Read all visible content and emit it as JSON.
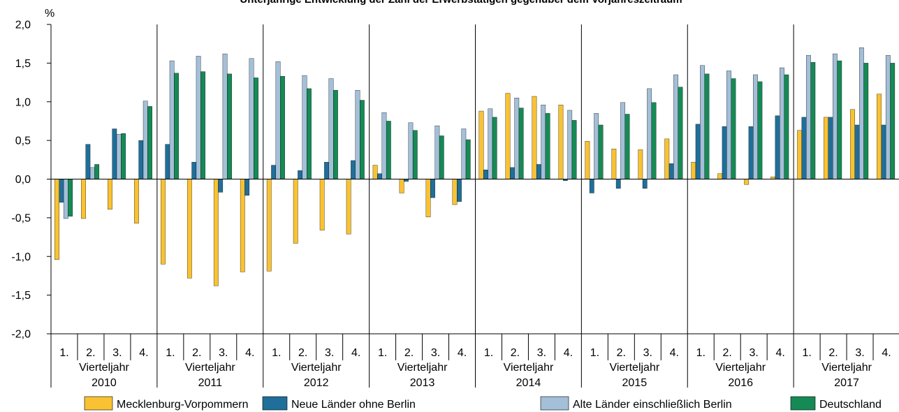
{
  "chart_data": {
    "type": "bar",
    "title": "Unterjährige Entwicklung der Zahl der Erwerbstätigen gegenüber dem Vorjahreszeitraum",
    "ylabel": "%",
    "xlabel": "",
    "ylim": [
      -2.0,
      2.0
    ],
    "y_ticks": [
      "2,0",
      "1,5",
      "1,0",
      "0,5",
      "0,0",
      "-0,5",
      "-1,0",
      "-1,5",
      "-2,0"
    ],
    "grid": false,
    "legend_position": "bottom",
    "quarter_labels": [
      "1.",
      "2.",
      "3.",
      "4."
    ],
    "group_caption": "Vierteljahr",
    "years": [
      "2010",
      "2011",
      "2012",
      "2013",
      "2014",
      "2015",
      "2016",
      "2017"
    ],
    "series": [
      {
        "name": "Mecklenburg-Vorpommern",
        "color": "#f9c232",
        "values": [
          -1.04,
          -0.51,
          -0.39,
          -0.57,
          -1.1,
          -1.28,
          -1.38,
          -1.2,
          -1.19,
          -0.83,
          -0.66,
          -0.71,
          0.18,
          -0.18,
          -0.49,
          -0.33,
          0.88,
          1.11,
          1.07,
          0.96,
          0.49,
          0.39,
          0.38,
          0.52,
          0.22,
          0.07,
          -0.07,
          0.03,
          0.63,
          0.8,
          0.9,
          1.1
        ]
      },
      {
        "name": "Neue Länder ohne Berlin",
        "color": "#1f6f9a",
        "values": [
          -0.3,
          0.45,
          0.65,
          0.5,
          0.45,
          0.22,
          -0.17,
          -0.21,
          0.18,
          0.11,
          0.22,
          0.24,
          0.07,
          -0.03,
          -0.24,
          -0.29,
          0.12,
          0.15,
          0.19,
          -0.02,
          -0.18,
          -0.12,
          -0.12,
          0.2,
          0.71,
          0.68,
          0.68,
          0.82,
          0.8,
          0.8,
          0.7,
          0.7
        ]
      },
      {
        "name": "Alte Länder einschließlich Berlin",
        "color": "#a4bfd8",
        "values": [
          -0.51,
          0.15,
          0.58,
          1.01,
          1.53,
          1.59,
          1.62,
          1.56,
          1.52,
          1.34,
          1.3,
          1.15,
          0.86,
          0.73,
          0.69,
          0.65,
          0.91,
          1.05,
          0.96,
          0.89,
          0.85,
          0.99,
          1.17,
          1.35,
          1.47,
          1.4,
          1.35,
          1.44,
          1.6,
          1.62,
          1.7,
          1.6
        ]
      },
      {
        "name": "Deutschland",
        "color": "#168a55",
        "values": [
          -0.48,
          0.19,
          0.59,
          0.94,
          1.37,
          1.39,
          1.36,
          1.31,
          1.33,
          1.17,
          1.15,
          1.02,
          0.75,
          0.63,
          0.56,
          0.51,
          0.8,
          0.92,
          0.85,
          0.76,
          0.7,
          0.84,
          0.99,
          1.19,
          1.36,
          1.3,
          1.26,
          1.35,
          1.51,
          1.53,
          1.5,
          1.5
        ]
      }
    ]
  }
}
